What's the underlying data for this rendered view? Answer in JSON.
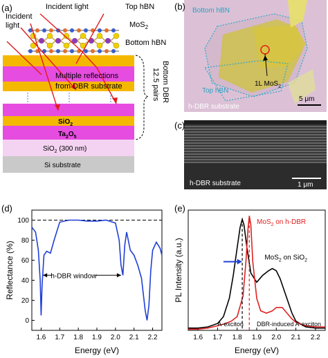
{
  "panel_a": {
    "label": "(a)",
    "incident_light_1": "Incident light",
    "incident_light_2a": "Incident",
    "incident_light_2b": "light",
    "top_hbn": "Top hBN",
    "mos2_main": "MoS",
    "mos2_sub": "2",
    "bottom_hbn": "Bottom hBN",
    "reflections_1": "Multiple reflections",
    "reflections_2": "from DBR substrate",
    "sio2_main": "SiO",
    "sio2_sub": "2",
    "ta2o5_a": "Ta",
    "ta2o5_b": "2",
    "ta2o5_c": "O",
    "ta2o5_d": "5",
    "sio2_300_a": "SiO",
    "sio2_300_b": "2",
    "sio2_300_c": " (300 nm)",
    "si_substrate": "Si substrate",
    "bottom_dbr_1": "Bottom DBR",
    "bottom_dbr_2": "12.5 pairs"
  },
  "panel_b": {
    "label": "(b)",
    "bottom_hbn": "Bottom hBN",
    "top_hbn": "Top hBN",
    "mos2_a": "1L MoS",
    "mos2_b": "2",
    "substrate": "h-DBR substrate",
    "scale": "5 μm"
  },
  "panel_c": {
    "label": "(c)",
    "substrate": "h-DBR substrate",
    "scale": "1 μm"
  },
  "chart_data": [
    {
      "type": "line",
      "label": "(d)",
      "xlabel": "Energy (eV)",
      "ylabel": "Reflectance (%)",
      "xlim": [
        1.55,
        2.25
      ],
      "ylim": [
        -10,
        110
      ],
      "xticks": [
        "1.6",
        "1.7",
        "1.8",
        "1.9",
        "2.0",
        "2.1",
        "2.2"
      ],
      "yticks": [
        "0",
        "20",
        "40",
        "60",
        "80",
        "100"
      ],
      "reference_line": 100,
      "annotation": "h-DBR window",
      "window": [
        1.61,
        2.03
      ],
      "series": [
        {
          "color": "#1f3fd6",
          "x": [
            1.55,
            1.57,
            1.585,
            1.595,
            1.6,
            1.605,
            1.615,
            1.63,
            1.65,
            1.67,
            1.7,
            1.75,
            1.8,
            1.85,
            1.9,
            1.95,
            2.0,
            2.02,
            2.03,
            2.04,
            2.05,
            2.06,
            2.08,
            2.1,
            2.12,
            2.14,
            2.16,
            2.17,
            2.18,
            2.19,
            2.2,
            2.22,
            2.24,
            2.25
          ],
          "y": [
            93,
            88,
            70,
            40,
            5,
            35,
            65,
            69,
            67,
            80,
            98,
            100,
            100,
            99,
            99,
            100,
            97,
            80,
            55,
            45,
            75,
            88,
            70,
            65,
            55,
            42,
            10,
            0,
            15,
            50,
            70,
            78,
            72,
            65
          ]
        }
      ]
    },
    {
      "type": "line",
      "label": "(e)",
      "xlabel": "Energy (eV)",
      "ylabel": "PL Intensity (a.u.)",
      "xlim": [
        1.55,
        2.25
      ],
      "ylim": [
        0,
        1.05
      ],
      "xticks": [
        "1.6",
        "1.7",
        "1.8",
        "1.9",
        "2.0",
        "2.1",
        "2.2"
      ],
      "annotations": {
        "red_label_a": "MoS",
        "red_label_b": "2",
        "red_label_c": " on h-DBR",
        "black_label_a": "MoS",
        "black_label_b": "2",
        "black_label_c": " on SiO",
        "black_label_d": "2",
        "a_exciton": "A-exciton",
        "dbr_exciton": "DBR-induced A-exciton"
      },
      "markers": {
        "black_peak": 1.826,
        "red_peak": 1.862
      },
      "series": [
        {
          "color": "#000000",
          "x": [
            1.55,
            1.6,
            1.65,
            1.7,
            1.73,
            1.76,
            1.78,
            1.8,
            1.815,
            1.826,
            1.835,
            1.85,
            1.87,
            1.9,
            1.93,
            1.96,
            1.98,
            2.0,
            2.02,
            2.05,
            2.08,
            2.1,
            2.15,
            2.2,
            2.25
          ],
          "y": [
            0.02,
            0.02,
            0.03,
            0.06,
            0.12,
            0.28,
            0.48,
            0.72,
            0.9,
            0.97,
            0.92,
            0.72,
            0.5,
            0.42,
            0.48,
            0.52,
            0.54,
            0.52,
            0.45,
            0.3,
            0.15,
            0.08,
            0.03,
            0.02,
            0.02
          ]
        },
        {
          "color": "#e02020",
          "x": [
            1.55,
            1.6,
            1.65,
            1.7,
            1.74,
            1.77,
            1.8,
            1.83,
            1.845,
            1.855,
            1.862,
            1.87,
            1.88,
            1.9,
            1.92,
            1.95,
            1.98,
            2.0,
            2.03,
            2.05,
            2.08,
            2.1,
            2.15,
            2.2,
            2.25
          ],
          "y": [
            0.01,
            0.01,
            0.02,
            0.04,
            0.06,
            0.08,
            0.12,
            0.3,
            0.6,
            0.88,
            1.0,
            0.92,
            0.6,
            0.28,
            0.17,
            0.15,
            0.17,
            0.2,
            0.2,
            0.16,
            0.1,
            0.07,
            0.04,
            0.03,
            0.03
          ]
        }
      ]
    }
  ]
}
